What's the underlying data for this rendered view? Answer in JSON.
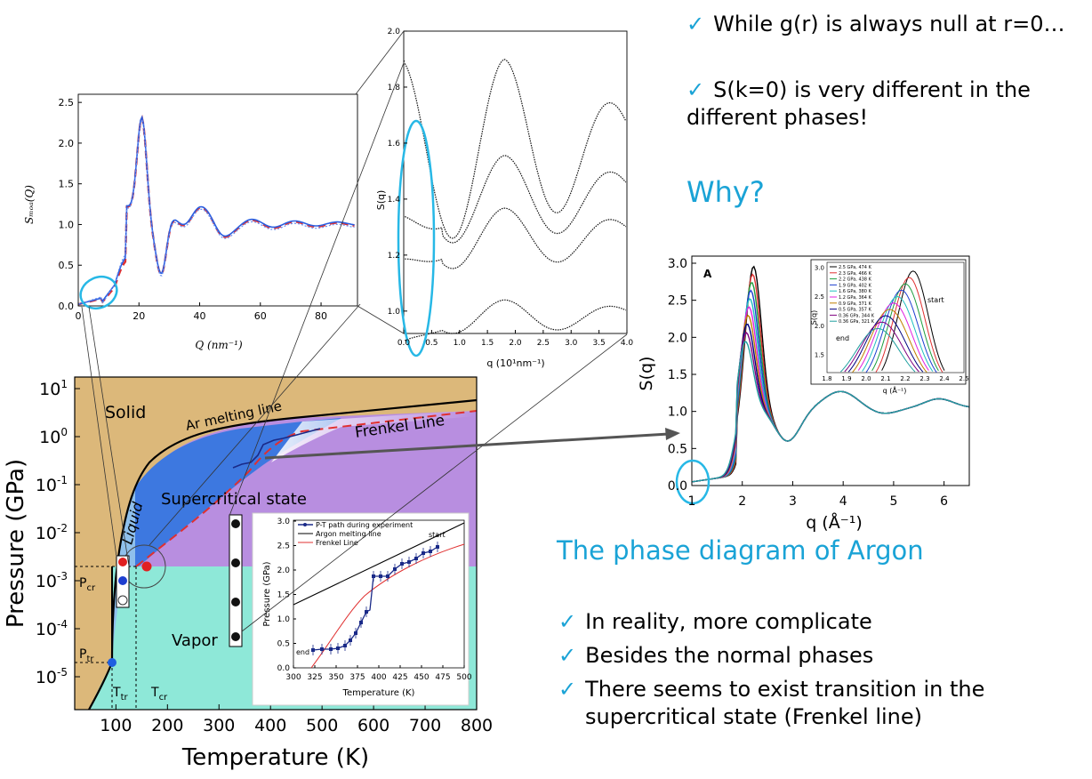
{
  "colors": {
    "accent": "#1aa3d6",
    "solid": "#dcb87a",
    "vapor": "#8ee8d8",
    "supercritical": "#b88ee0",
    "liquid": "#2e6fd6",
    "frenkel": "#e03030"
  },
  "top_bullets": [
    "While g(r) is always null at r=0…",
    "S(k=0) is very different in the different phases!"
  ],
  "why": "Why?",
  "subtitle": "The phase diagram of Argon",
  "bottom_bullets": [
    "In reality, more complicate",
    "Besides the normal phases",
    "There seems to exist transition in the supercritical state (Frenkel line)"
  ],
  "phase_diagram": {
    "xlabel": "Temperature (K)",
    "ylabel": "Pressure (GPa)",
    "xticks": [
      "100",
      "200",
      "300",
      "400",
      "500",
      "600",
      "700",
      "800"
    ],
    "yticks": [
      {
        "base": "10",
        "exp": "1"
      },
      {
        "base": "10",
        "exp": "0"
      },
      {
        "base": "10",
        "exp": "-1"
      },
      {
        "base": "10",
        "exp": "-2"
      },
      {
        "base": "10",
        "exp": "-3"
      },
      {
        "base": "10",
        "exp": "-4"
      },
      {
        "base": "10",
        "exp": "-5"
      }
    ],
    "labels": {
      "solid": "Solid",
      "liquid": "Liquid",
      "supercritical": "Supercritical state",
      "vapor": "Vapor",
      "melting": "Ar melting line",
      "frenkel": "Frenkel Line",
      "pcr": "P",
      "pcr_sub": "cr",
      "ptr": "P",
      "ptr_sub": "tr",
      "ttr": "T",
      "ttr_sub": "tr",
      "tcr": "T",
      "tcr_sub": "cr"
    }
  },
  "inset": {
    "legend": [
      "P-T path during experiment",
      "Argon melting line",
      "Frenkel Line"
    ],
    "xlabel": "Temperature (K)",
    "ylabel": "Pressure (GPa)",
    "xticks": [
      "300",
      "325",
      "350",
      "375",
      "400",
      "425",
      "450",
      "475",
      "500"
    ],
    "yticks": [
      "0.0",
      "0.5",
      "1.0",
      "1.5",
      "2.0",
      "2.5",
      "3.0"
    ],
    "start": "start",
    "end": "end"
  },
  "smod_plot": {
    "xlabel": "Q (nm⁻¹)",
    "ylabel": "Sₘₒₐ(Q)",
    "xticks": [
      "0",
      "20",
      "40",
      "60",
      "80"
    ],
    "yticks": [
      "0.0",
      "0.5",
      "1.0",
      "1.5",
      "2.0",
      "2.5"
    ]
  },
  "sq_plot": {
    "xlabel": "q (10¹nm⁻¹)",
    "ylabel": "S(q)",
    "xticks": [
      "0.0",
      "0.5",
      "1.0",
      "1.5",
      "2.0",
      "2.5",
      "3.0",
      "3.5",
      "4.0"
    ],
    "yticks": [
      "1.0",
      "1.2",
      "1.4",
      "1.6",
      "1.8",
      "2.0"
    ]
  },
  "sqA_plot": {
    "panel": "A",
    "xlabel": "q (Å⁻¹)",
    "ylabel": "S(q)",
    "xticks": [
      "1",
      "2",
      "3",
      "4",
      "5",
      "6"
    ],
    "yticks": [
      "0.0",
      "0.5",
      "1.0",
      "1.5",
      "2.0",
      "2.5",
      "3.0"
    ],
    "inset_legend": [
      "2.5 GPa, 474 K",
      "2.3 GPa, 466 K",
      "2.2 GPa, 438 K",
      "1.9 GPa, 402 K",
      "1.6 GPa, 380 K",
      "1.2 GPa, 364 K",
      "0.9 GPa, 371 K",
      "0.5 GPa, 357 K",
      "0.36 GPa, 344 K",
      "0.36 GPa, 321 K"
    ],
    "inset_xticks": [
      "1.8",
      "1.9",
      "2.0",
      "2.1",
      "2.2",
      "2.3",
      "2.4",
      "2.5"
    ],
    "inset_yticks": [
      "1.5",
      "2.0",
      "2.5",
      "3.0"
    ],
    "inset_xlabel": "q (Å⁻¹)",
    "inset_ylabel": "S(q)",
    "start": "start",
    "end": "end"
  }
}
